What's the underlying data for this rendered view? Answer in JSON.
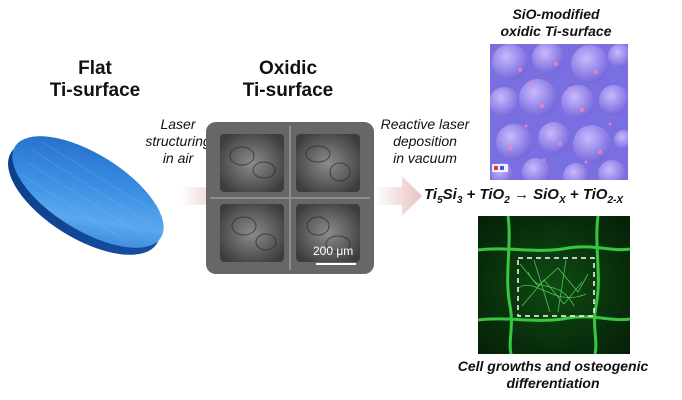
{
  "flat": {
    "title_line1": "Flat",
    "title_line2": "Ti-surface"
  },
  "oxidic": {
    "title_line1": "Oxidic",
    "title_line2": "Ti-surface",
    "scale_bar_label": "200 μm"
  },
  "laser_structuring": {
    "line1": "Laser",
    "line2": "structuring",
    "line3": "in air"
  },
  "reactive_laser": {
    "line1": "Reactive laser",
    "line2": "deposition",
    "line3": "in vacuum"
  },
  "sio_modified": {
    "line1": "SiO-modified",
    "line2": "oxidic Ti-surface"
  },
  "equation": {
    "ti": "Ti",
    "ti_sub": "5",
    "si": "Si",
    "si_sub": "3",
    "plus1": " + ",
    "tio2": "TiO",
    "tio2_sub": "2",
    "arrow": " → ",
    "siox": "SiO",
    "siox_sub": "X",
    "plus2": " + ",
    "tio2x": "TiO",
    "tio2x_sub": "2-X"
  },
  "cell_growth": {
    "line1": "Cell growths and osteogenic",
    "line2": "differentiation"
  },
  "colors": {
    "disk_blue": "#2f7fd6",
    "arrow_pink": "#e8c9c9",
    "cell_green": "#2fd23a",
    "sem_gray": "#6f6f6f",
    "purple": "#8f7fe0"
  }
}
